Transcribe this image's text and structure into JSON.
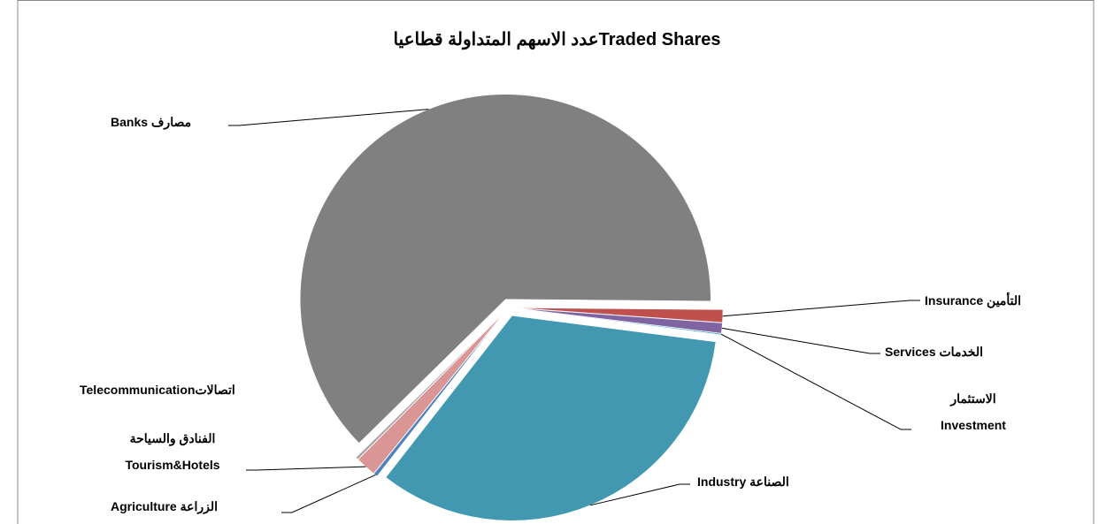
{
  "chart_data": {
    "type": "pie",
    "title": "عدد الاسهم المتداولة قطاعياTraded Shares",
    "categories": [
      "Insurance التأمين",
      "Services الخدمات",
      "الاستثمار\nInvestment",
      "Industry الصناعة",
      "Agriculture الزراعة",
      "الفنادق والسياحة\nTourism&Hotels",
      "Telecommunicationاتصالات",
      "Banks مصارف"
    ],
    "values": [
      1.0,
      0.8,
      0.1,
      33.5,
      0.3,
      1.6,
      0.2,
      62.5
    ],
    "colors": [
      "#c0504d",
      "#8064a2",
      "#4bacc6",
      "#4198b0",
      "#4f81bd",
      "#d99694",
      "#a6a6a6",
      "#808080"
    ]
  }
}
